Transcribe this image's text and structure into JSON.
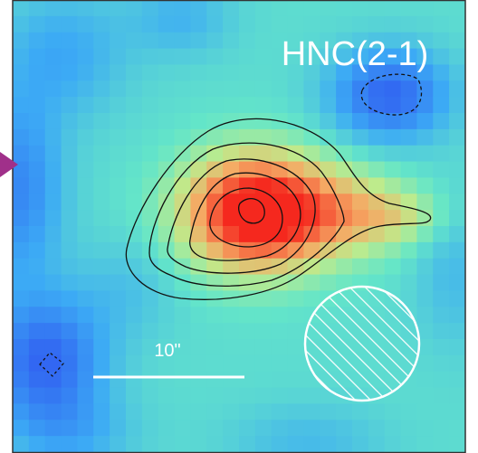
{
  "panel": {
    "label": "HNC(2-1)",
    "scale_bar_label": "10\""
  }
}
